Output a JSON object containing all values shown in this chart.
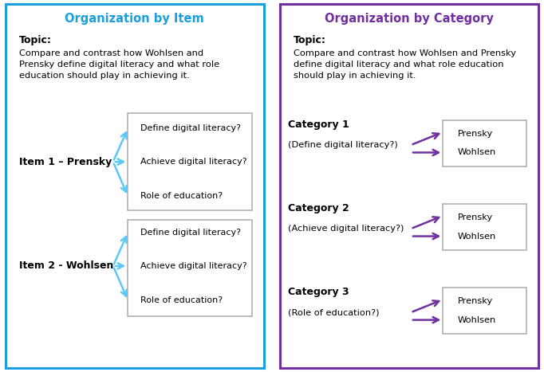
{
  "left_title": "Organization by Item",
  "right_title": "Organization by Category",
  "left_title_color": "#1a9fe0",
  "right_title_color": "#7030a0",
  "left_border_color": "#1a9fe0",
  "right_border_color": "#7030a0",
  "topic_label": "Topic:",
  "topic_text_left": "Compare and contrast how Wohlsen and\nPrensky define digital literacy and what role\neducation should play in achieving it.",
  "topic_text_right": "Compare and contrast how Wohlsen and Prensky\ndefine digital literacy and what role education\nshould play in achieving it.",
  "left_item1_label": "Item 1 – Prensky",
  "left_item2_label": "Item 2 - Wohlsen",
  "left_box_lines": [
    "Define digital literacy?",
    "Achieve digital literacy?",
    "Role of education?"
  ],
  "left_arrow_color": "#5bc8f5",
  "right_arrow_color": "#7030a0",
  "categories": [
    "Category 1",
    "Category 2",
    "Category 3"
  ],
  "category_subtitles": [
    "(Define digital literacy?)",
    "(Achieve digital literacy?)",
    "(Role of education?)"
  ],
  "right_box_lines": [
    [
      "Prensky",
      "Wohlsen"
    ],
    [
      "Prensky",
      "Wohlsen"
    ],
    [
      "Prensky",
      "Wohlsen"
    ]
  ],
  "box_border_color": "#aaaaaa",
  "bg_color": "#ffffff",
  "text_color": "#000000"
}
